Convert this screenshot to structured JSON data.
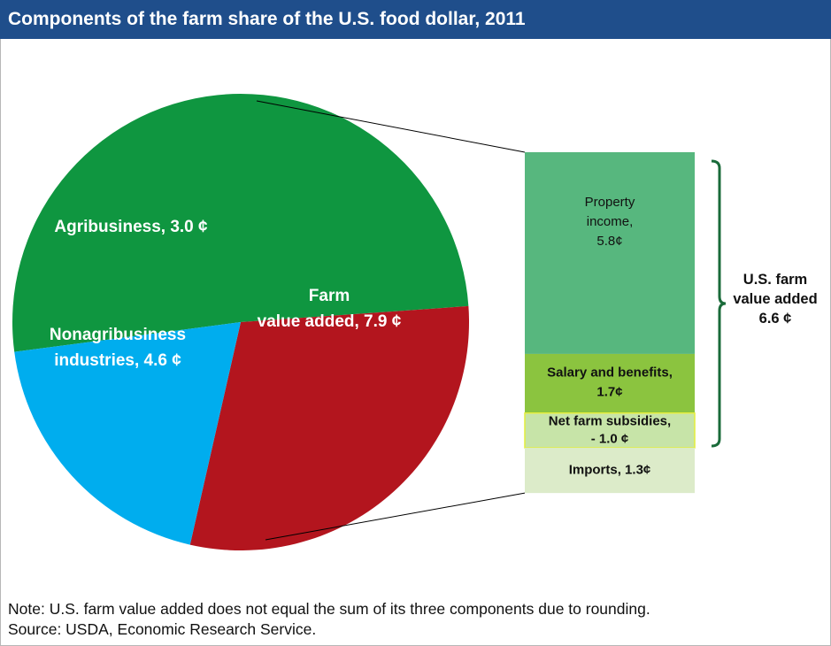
{
  "title": "Components of the farm share of the U.S. food dollar, 2011",
  "note": "Note: U.S. farm value added does not equal the sum of its three components due to rounding.",
  "source": "Source: USDA, Economic Research Service.",
  "chart_data": [
    {
      "type": "pie",
      "title": "",
      "unit": "¢",
      "slices": [
        {
          "label_lines": [
            "Farm",
            "value added, 7.9 ¢"
          ],
          "value": 7.9,
          "color": "#0f9640"
        },
        {
          "label_lines": [
            "Nonagribusiness",
            "industries, 4.6 ¢"
          ],
          "value": 4.6,
          "color": "#b3151e"
        },
        {
          "label_lines": [
            "Agribusiness, 3.0 ¢"
          ],
          "value": 3.0,
          "color": "#00adee"
        }
      ]
    },
    {
      "type": "bar",
      "stacked": true,
      "title": "",
      "unit": "¢",
      "segments": [
        {
          "label_lines": [
            "Property",
            "income,",
            "5.8¢"
          ],
          "value": 5.8,
          "color": "#57b77e"
        },
        {
          "label_lines": [
            "Salary and benefits,",
            "1.7¢"
          ],
          "value": 1.7,
          "color": "#8bc43f"
        },
        {
          "label_lines": [
            "Net farm subsidies,",
            "- 1.0 ¢"
          ],
          "value": -1.0,
          "color": "#c7e4a8"
        },
        {
          "label_lines": [
            "Imports, 1.3¢"
          ],
          "value": 1.3,
          "color": "#dcebc9"
        }
      ],
      "bracket_label_lines": [
        "U.S. farm",
        "value added",
        "6.6 ¢"
      ],
      "bracket_value": 6.6,
      "bracket_color": "#1a6b3a"
    }
  ]
}
